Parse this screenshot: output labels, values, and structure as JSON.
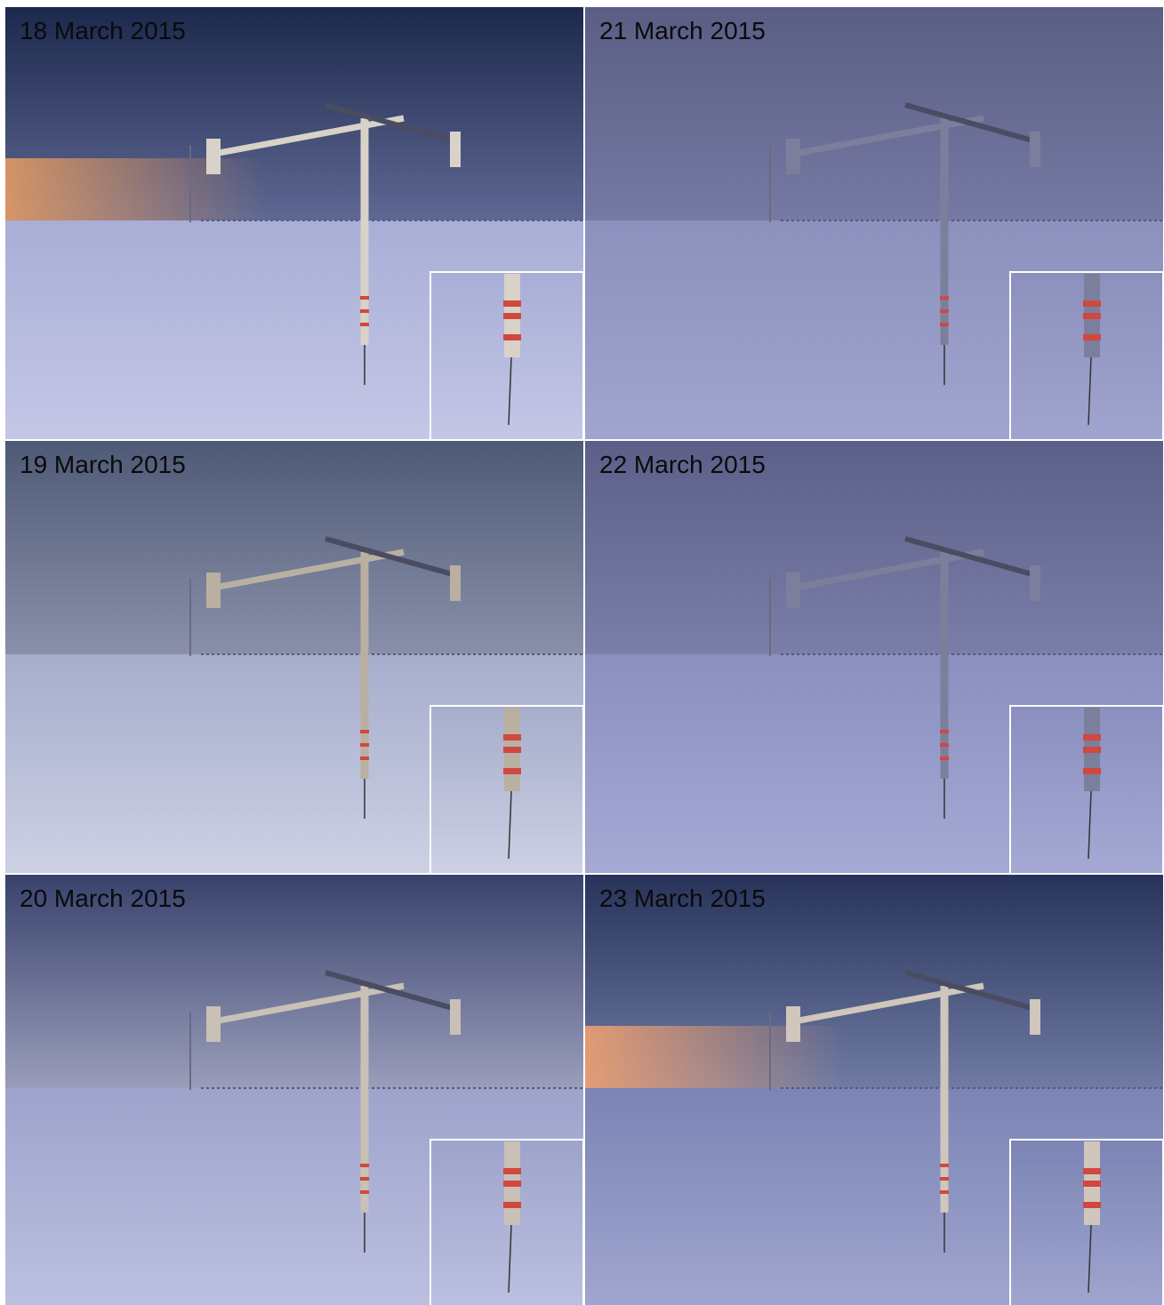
{
  "panels": [
    {
      "label": "18 March 2015"
    },
    {
      "label": "21 March 2015"
    },
    {
      "label": "19 March 2015"
    },
    {
      "label": "22 March 2015"
    },
    {
      "label": "20 March 2015"
    },
    {
      "label": "23 March 2015"
    }
  ]
}
